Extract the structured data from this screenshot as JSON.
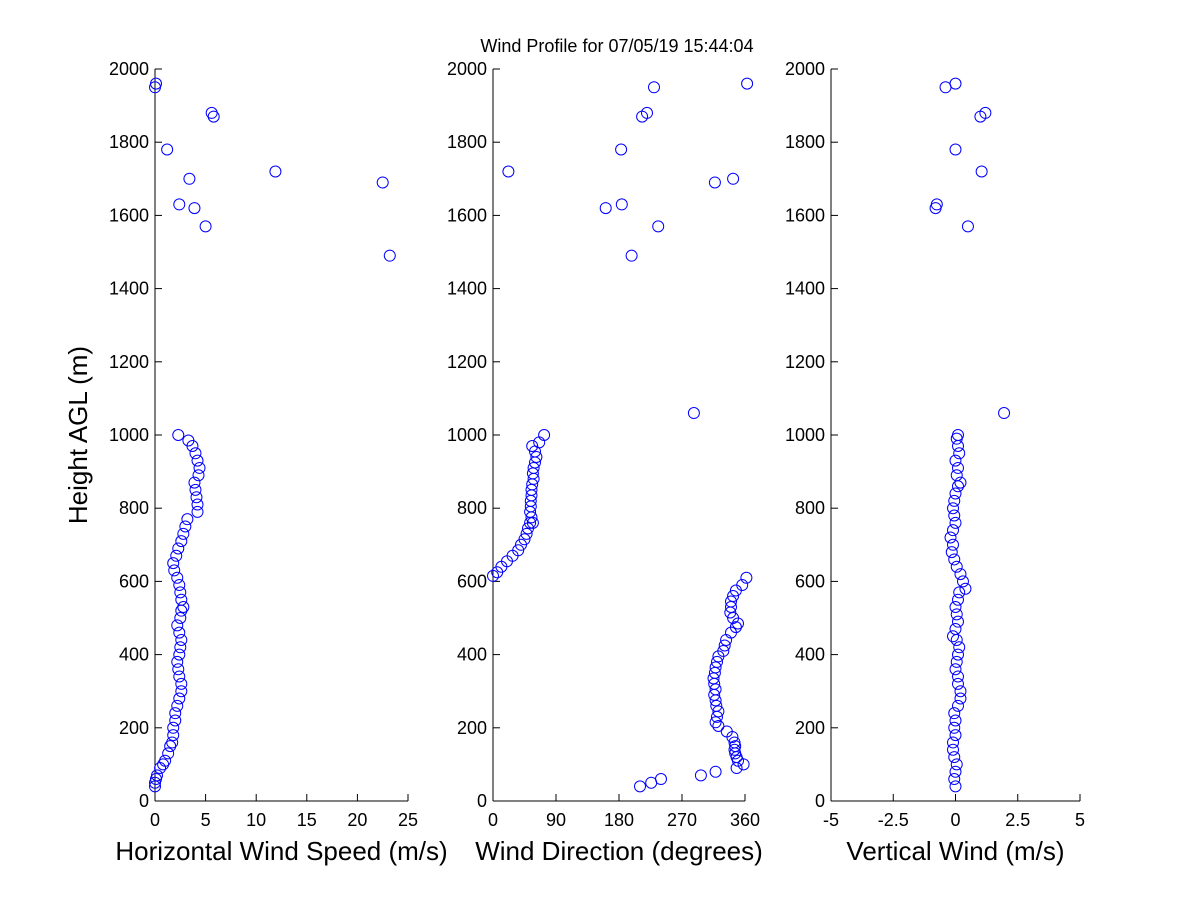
{
  "figure": {
    "title": "Wind Profile for  07/05/19 15:44:04",
    "ylabel": "Height AGL (m)",
    "marker_color": "#0000ff"
  },
  "chart_data": [
    {
      "type": "scatter",
      "xlabel": "Horizontal Wind Speed (m/s)",
      "ylabel": "Height AGL (m)",
      "xlim": [
        0,
        25
      ],
      "ylim": [
        0,
        2000
      ],
      "xticks": [
        0,
        5,
        10,
        15,
        20,
        25
      ],
      "xtick_labels": [
        "0",
        "5",
        "10",
        "15",
        "20",
        "25"
      ],
      "yticks": [
        0,
        200,
        400,
        600,
        800,
        1000,
        1200,
        1400,
        1600,
        1800,
        2000
      ],
      "ytick_labels": [
        "0",
        "200",
        "400",
        "600",
        "800",
        "1000",
        "1200",
        "1400",
        "1600",
        "1800",
        "2000"
      ],
      "grid": false,
      "points": [
        [
          0.0,
          40
        ],
        [
          0.0,
          50
        ],
        [
          0.1,
          60
        ],
        [
          0.2,
          70
        ],
        [
          0.5,
          90
        ],
        [
          0.8,
          100
        ],
        [
          1.0,
          110
        ],
        [
          1.3,
          130
        ],
        [
          1.5,
          150
        ],
        [
          1.7,
          160
        ],
        [
          1.8,
          180
        ],
        [
          1.8,
          200
        ],
        [
          2.0,
          220
        ],
        [
          2.0,
          240
        ],
        [
          2.2,
          260
        ],
        [
          2.4,
          280
        ],
        [
          2.6,
          300
        ],
        [
          2.6,
          320
        ],
        [
          2.4,
          340
        ],
        [
          2.3,
          360
        ],
        [
          2.2,
          380
        ],
        [
          2.4,
          400
        ],
        [
          2.5,
          420
        ],
        [
          2.6,
          440
        ],
        [
          2.4,
          460
        ],
        [
          2.2,
          480
        ],
        [
          2.5,
          500
        ],
        [
          2.6,
          520
        ],
        [
          2.8,
          530
        ],
        [
          2.6,
          550
        ],
        [
          2.5,
          570
        ],
        [
          2.4,
          590
        ],
        [
          2.2,
          610
        ],
        [
          1.9,
          630
        ],
        [
          1.8,
          650
        ],
        [
          2.1,
          670
        ],
        [
          2.3,
          690
        ],
        [
          2.6,
          710
        ],
        [
          2.8,
          730
        ],
        [
          3.0,
          750
        ],
        [
          3.2,
          770
        ],
        [
          4.2,
          790
        ],
        [
          4.2,
          810
        ],
        [
          4.1,
          830
        ],
        [
          4.0,
          850
        ],
        [
          3.9,
          870
        ],
        [
          4.3,
          890
        ],
        [
          4.4,
          910
        ],
        [
          4.2,
          930
        ],
        [
          4.0,
          950
        ],
        [
          3.7,
          970
        ],
        [
          3.3,
          985
        ],
        [
          2.3,
          1000
        ],
        [
          23.2,
          1490
        ],
        [
          5.0,
          1570
        ],
        [
          3.9,
          1620
        ],
        [
          2.4,
          1630
        ],
        [
          22.5,
          1690
        ],
        [
          3.4,
          1700
        ],
        [
          11.9,
          1720
        ],
        [
          1.2,
          1780
        ],
        [
          5.8,
          1870
        ],
        [
          5.6,
          1880
        ],
        [
          0.0,
          1950
        ],
        [
          0.1,
          1960
        ]
      ]
    },
    {
      "type": "scatter",
      "xlabel": "Wind Direction (degrees)",
      "xlim": [
        0,
        360
      ],
      "ylim": [
        0,
        2000
      ],
      "xticks": [
        0,
        90,
        180,
        270,
        360
      ],
      "xtick_labels": [
        "0",
        "90",
        "180",
        "270",
        "360"
      ],
      "yticks": [
        0,
        200,
        400,
        600,
        800,
        1000,
        1200,
        1400,
        1600,
        1800,
        2000
      ],
      "ytick_labels": [
        "0",
        "200",
        "400",
        "600",
        "800",
        "1000",
        "1200",
        "1400",
        "1600",
        "1800",
        "2000"
      ],
      "grid": false,
      "points": [
        [
          210,
          40
        ],
        [
          226,
          50
        ],
        [
          240,
          60
        ],
        [
          297,
          70
        ],
        [
          318,
          80
        ],
        [
          348,
          90
        ],
        [
          358,
          100
        ],
        [
          350,
          110
        ],
        [
          348,
          120
        ],
        [
          346,
          130
        ],
        [
          345,
          140
        ],
        [
          346,
          150
        ],
        [
          345,
          160
        ],
        [
          342,
          175
        ],
        [
          334,
          190
        ],
        [
          322,
          205
        ],
        [
          318,
          215
        ],
        [
          320,
          230
        ],
        [
          322,
          245
        ],
        [
          319,
          260
        ],
        [
          318,
          275
        ],
        [
          316,
          290
        ],
        [
          318,
          305
        ],
        [
          316,
          320
        ],
        [
          315,
          335
        ],
        [
          317,
          350
        ],
        [
          318,
          365
        ],
        [
          320,
          380
        ],
        [
          322,
          395
        ],
        [
          329,
          410
        ],
        [
          331,
          425
        ],
        [
          333,
          440
        ],
        [
          340,
          460
        ],
        [
          347,
          475
        ],
        [
          350,
          485
        ],
        [
          343,
          500
        ],
        [
          339,
          515
        ],
        [
          340,
          530
        ],
        [
          340,
          545
        ],
        [
          343,
          560
        ],
        [
          347,
          575
        ],
        [
          356,
          590
        ],
        [
          362,
          610
        ],
        [
          0,
          615
        ],
        [
          6,
          625
        ],
        [
          12,
          640
        ],
        [
          20,
          655
        ],
        [
          28,
          670
        ],
        [
          36,
          685
        ],
        [
          40,
          700
        ],
        [
          45,
          715
        ],
        [
          48,
          730
        ],
        [
          50,
          745
        ],
        [
          53,
          760
        ],
        [
          57,
          760
        ],
        [
          55,
          775
        ],
        [
          53,
          790
        ],
        [
          54,
          805
        ],
        [
          54,
          820
        ],
        [
          55,
          835
        ],
        [
          55,
          850
        ],
        [
          56,
          865
        ],
        [
          58,
          880
        ],
        [
          57,
          895
        ],
        [
          58,
          910
        ],
        [
          60,
          925
        ],
        [
          62,
          940
        ],
        [
          60,
          955
        ],
        [
          56,
          970
        ],
        [
          66,
          980
        ],
        [
          73,
          1000
        ],
        [
          287,
          1060
        ],
        [
          198,
          1490
        ],
        [
          236,
          1570
        ],
        [
          161,
          1620
        ],
        [
          184,
          1630
        ],
        [
          317,
          1690
        ],
        [
          343,
          1700
        ],
        [
          22,
          1720
        ],
        [
          183,
          1780
        ],
        [
          213,
          1870
        ],
        [
          220,
          1880
        ],
        [
          230,
          1950
        ],
        [
          363,
          1960
        ]
      ]
    },
    {
      "type": "scatter",
      "xlabel": "Vertical Wind (m/s)",
      "xlim": [
        -5,
        5
      ],
      "ylim": [
        0,
        2000
      ],
      "xticks": [
        -5,
        -2.5,
        0,
        2.5,
        5
      ],
      "xtick_labels": [
        "-5",
        "-2.5",
        "0",
        "2.5",
        "5"
      ],
      "yticks": [
        0,
        200,
        400,
        600,
        800,
        1000,
        1200,
        1400,
        1600,
        1800,
        2000
      ],
      "ytick_labels": [
        "0",
        "200",
        "400",
        "600",
        "800",
        "1000",
        "1200",
        "1400",
        "1600",
        "1800",
        "2000"
      ],
      "grid": false,
      "points": [
        [
          0.0,
          40
        ],
        [
          -0.05,
          60
        ],
        [
          0.0,
          80
        ],
        [
          0.05,
          100
        ],
        [
          -0.05,
          120
        ],
        [
          -0.1,
          140
        ],
        [
          -0.1,
          160
        ],
        [
          0.0,
          180
        ],
        [
          -0.05,
          200
        ],
        [
          0.0,
          220
        ],
        [
          -0.05,
          240
        ],
        [
          0.1,
          260
        ],
        [
          0.2,
          280
        ],
        [
          0.2,
          300
        ],
        [
          0.1,
          320
        ],
        [
          0.1,
          340
        ],
        [
          0.0,
          360
        ],
        [
          0.05,
          380
        ],
        [
          0.1,
          400
        ],
        [
          0.15,
          420
        ],
        [
          0.05,
          440
        ],
        [
          -0.1,
          450
        ],
        [
          0.0,
          470
        ],
        [
          0.1,
          490
        ],
        [
          0.05,
          510
        ],
        [
          0.0,
          530
        ],
        [
          0.1,
          550
        ],
        [
          0.15,
          570
        ],
        [
          0.4,
          580
        ],
        [
          0.3,
          600
        ],
        [
          0.2,
          620
        ],
        [
          0.05,
          640
        ],
        [
          -0.05,
          660
        ],
        [
          -0.15,
          680
        ],
        [
          -0.1,
          700
        ],
        [
          -0.2,
          720
        ],
        [
          -0.1,
          740
        ],
        [
          0.0,
          760
        ],
        [
          -0.05,
          780
        ],
        [
          -0.1,
          800
        ],
        [
          -0.05,
          820
        ],
        [
          0.0,
          840
        ],
        [
          0.1,
          860
        ],
        [
          0.2,
          870
        ],
        [
          0.05,
          890
        ],
        [
          0.1,
          910
        ],
        [
          0.0,
          930
        ],
        [
          0.15,
          950
        ],
        [
          0.1,
          970
        ],
        [
          0.05,
          990
        ],
        [
          0.1,
          1000
        ],
        [
          1.95,
          1060
        ],
        [
          0.5,
          1570
        ],
        [
          -0.8,
          1620
        ],
        [
          -0.75,
          1630
        ],
        [
          1.05,
          1720
        ],
        [
          0.0,
          1780
        ],
        [
          1.0,
          1870
        ],
        [
          1.2,
          1880
        ],
        [
          -0.4,
          1950
        ],
        [
          0.0,
          1960
        ]
      ]
    }
  ]
}
